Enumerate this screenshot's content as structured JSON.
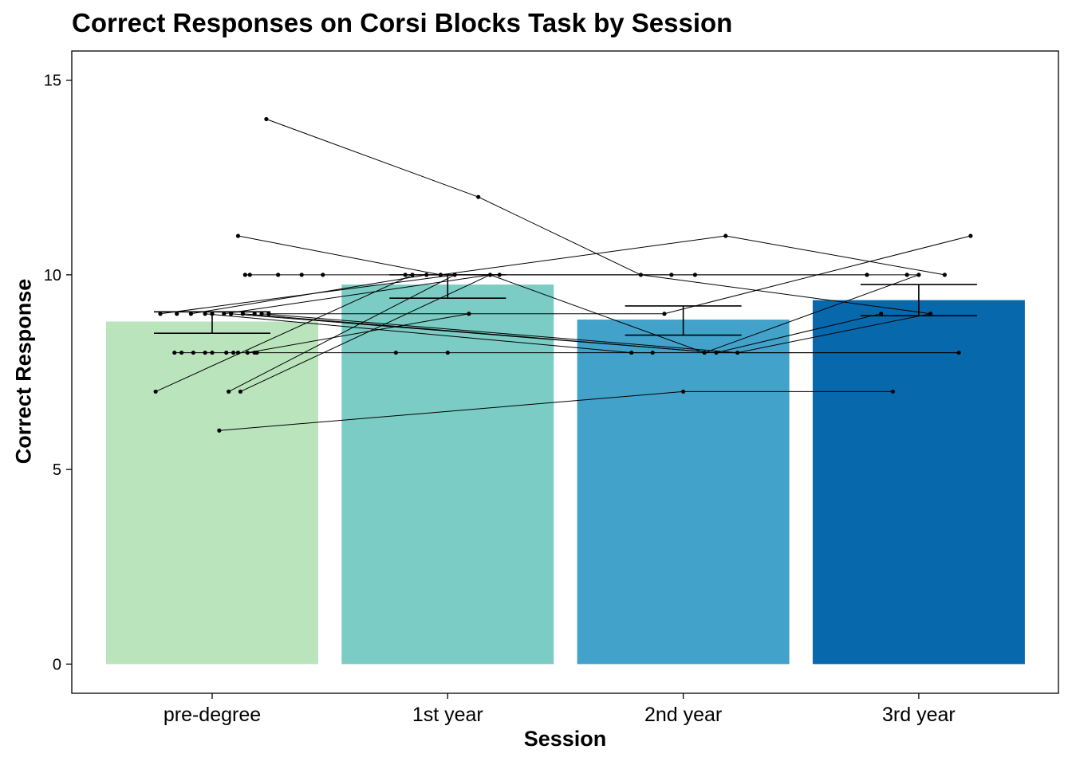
{
  "chart_data": {
    "type": "bar",
    "title": "Correct Responses on Corsi Blocks Task by Session",
    "xlabel": "Session",
    "ylabel": "Correct Response",
    "categories": [
      "pre-degree",
      "1st year",
      "2nd year",
      "3rd year"
    ],
    "values": [
      8.8,
      9.75,
      8.85,
      9.35
    ],
    "error_bars": [
      {
        "low": 8.5,
        "high": 9.05
      },
      {
        "low": 9.4,
        "high": 10.0
      },
      {
        "low": 8.45,
        "high": 9.2
      },
      {
        "low": 8.95,
        "high": 9.75
      }
    ],
    "bar_colors": [
      "#bae4bc",
      "#7bccc4",
      "#43a2ca",
      "#0868ac"
    ],
    "ylim": [
      -0.75,
      15.75
    ],
    "yticks": [
      0,
      5,
      10,
      15
    ],
    "grid": false,
    "legend": "none",
    "points": [
      {
        "x": 0.23,
        "y": 14
      },
      {
        "x": 0.11,
        "y": 11
      },
      {
        "x": 0.14,
        "y": 10
      },
      {
        "x": 0.16,
        "y": 10
      },
      {
        "x": 0.28,
        "y": 10
      },
      {
        "x": 0.38,
        "y": 10
      },
      {
        "x": 0.47,
        "y": 10
      },
      {
        "x": -0.22,
        "y": 9
      },
      {
        "x": -0.15,
        "y": 9
      },
      {
        "x": -0.09,
        "y": 9
      },
      {
        "x": -0.03,
        "y": 9
      },
      {
        "x": 0.0,
        "y": 9
      },
      {
        "x": 0.05,
        "y": 9
      },
      {
        "x": 0.08,
        "y": 9
      },
      {
        "x": 0.13,
        "y": 9
      },
      {
        "x": 0.18,
        "y": 9
      },
      {
        "x": 0.21,
        "y": 9
      },
      {
        "x": 0.24,
        "y": 9
      },
      {
        "x": -0.16,
        "y": 8
      },
      {
        "x": -0.13,
        "y": 8
      },
      {
        "x": -0.08,
        "y": 8
      },
      {
        "x": -0.03,
        "y": 8
      },
      {
        "x": 0.0,
        "y": 8
      },
      {
        "x": 0.06,
        "y": 8
      },
      {
        "x": 0.09,
        "y": 8
      },
      {
        "x": 0.11,
        "y": 8
      },
      {
        "x": 0.15,
        "y": 8
      },
      {
        "x": 0.18,
        "y": 8
      },
      {
        "x": 0.19,
        "y": 8
      },
      {
        "x": -0.24,
        "y": 7
      },
      {
        "x": 0.07,
        "y": 7
      },
      {
        "x": 0.12,
        "y": 7
      },
      {
        "x": 0.03,
        "y": 6
      },
      {
        "x": 1.13,
        "y": 12
      },
      {
        "x": 0.82,
        "y": 10
      },
      {
        "x": 0.85,
        "y": 10
      },
      {
        "x": 0.91,
        "y": 10
      },
      {
        "x": 0.97,
        "y": 10
      },
      {
        "x": 1.03,
        "y": 10
      },
      {
        "x": 1.18,
        "y": 10
      },
      {
        "x": 1.22,
        "y": 10
      },
      {
        "x": 1.09,
        "y": 9
      },
      {
        "x": 0.78,
        "y": 8
      },
      {
        "x": 1.0,
        "y": 8
      },
      {
        "x": 2.18,
        "y": 11
      },
      {
        "x": 1.82,
        "y": 10
      },
      {
        "x": 1.95,
        "y": 10
      },
      {
        "x": 2.05,
        "y": 10
      },
      {
        "x": 1.92,
        "y": 9
      },
      {
        "x": 1.78,
        "y": 8
      },
      {
        "x": 1.87,
        "y": 8
      },
      {
        "x": 2.09,
        "y": 8
      },
      {
        "x": 2.14,
        "y": 8
      },
      {
        "x": 2.23,
        "y": 8
      },
      {
        "x": 2.0,
        "y": 7
      },
      {
        "x": 3.22,
        "y": 11
      },
      {
        "x": 2.78,
        "y": 10
      },
      {
        "x": 2.95,
        "y": 10
      },
      {
        "x": 3.0,
        "y": 10
      },
      {
        "x": 3.11,
        "y": 10
      },
      {
        "x": 2.84,
        "y": 9
      },
      {
        "x": 3.05,
        "y": 9
      },
      {
        "x": 3.17,
        "y": 8
      },
      {
        "x": 2.89,
        "y": 7
      }
    ],
    "connections": [
      [
        [
          0.23,
          14
        ],
        [
          1.13,
          12
        ],
        [
          1.82,
          10
        ],
        [
          3.05,
          9
        ]
      ],
      [
        [
          0.11,
          11
        ],
        [
          0.97,
          10
        ],
        [
          2.18,
          11
        ],
        [
          3.11,
          10
        ]
      ],
      [
        [
          0.14,
          10
        ],
        [
          0.28,
          10
        ],
        [
          0.38,
          10
        ],
        [
          1.22,
          10
        ],
        [
          2.78,
          10
        ]
      ],
      [
        [
          -0.22,
          9
        ],
        [
          1.03,
          10
        ],
        [
          2.05,
          10
        ],
        [
          3.0,
          10
        ]
      ],
      [
        [
          -0.09,
          9
        ],
        [
          0.91,
          10
        ],
        [
          1.95,
          10
        ]
      ],
      [
        [
          0.05,
          9
        ],
        [
          1.18,
          10
        ],
        [
          2.09,
          8
        ],
        [
          3.0,
          10
        ]
      ],
      [
        [
          0.13,
          9
        ],
        [
          2.14,
          8
        ],
        [
          2.84,
          9
        ]
      ],
      [
        [
          0.21,
          9
        ],
        [
          2.23,
          8
        ],
        [
          3.05,
          9
        ]
      ],
      [
        [
          -0.03,
          9
        ],
        [
          1.78,
          8
        ],
        [
          1.87,
          8
        ]
      ],
      [
        [
          0.08,
          9
        ],
        [
          2.14,
          8
        ],
        [
          3.17,
          8
        ]
      ],
      [
        [
          -0.16,
          8
        ],
        [
          0.78,
          8
        ],
        [
          1.0,
          8
        ],
        [
          3.17,
          8
        ]
      ],
      [
        [
          0.15,
          8
        ],
        [
          1.09,
          9
        ]
      ],
      [
        [
          -0.24,
          7
        ],
        [
          0.85,
          10
        ]
      ],
      [
        [
          0.07,
          7
        ],
        [
          1.03,
          10
        ]
      ],
      [
        [
          0.12,
          7
        ],
        [
          1.18,
          10
        ]
      ],
      [
        [
          0.03,
          6
        ],
        [
          2.0,
          7
        ],
        [
          2.89,
          7
        ]
      ],
      [
        [
          0.24,
          9
        ],
        [
          1.92,
          9
        ],
        [
          3.22,
          11
        ]
      ]
    ]
  }
}
